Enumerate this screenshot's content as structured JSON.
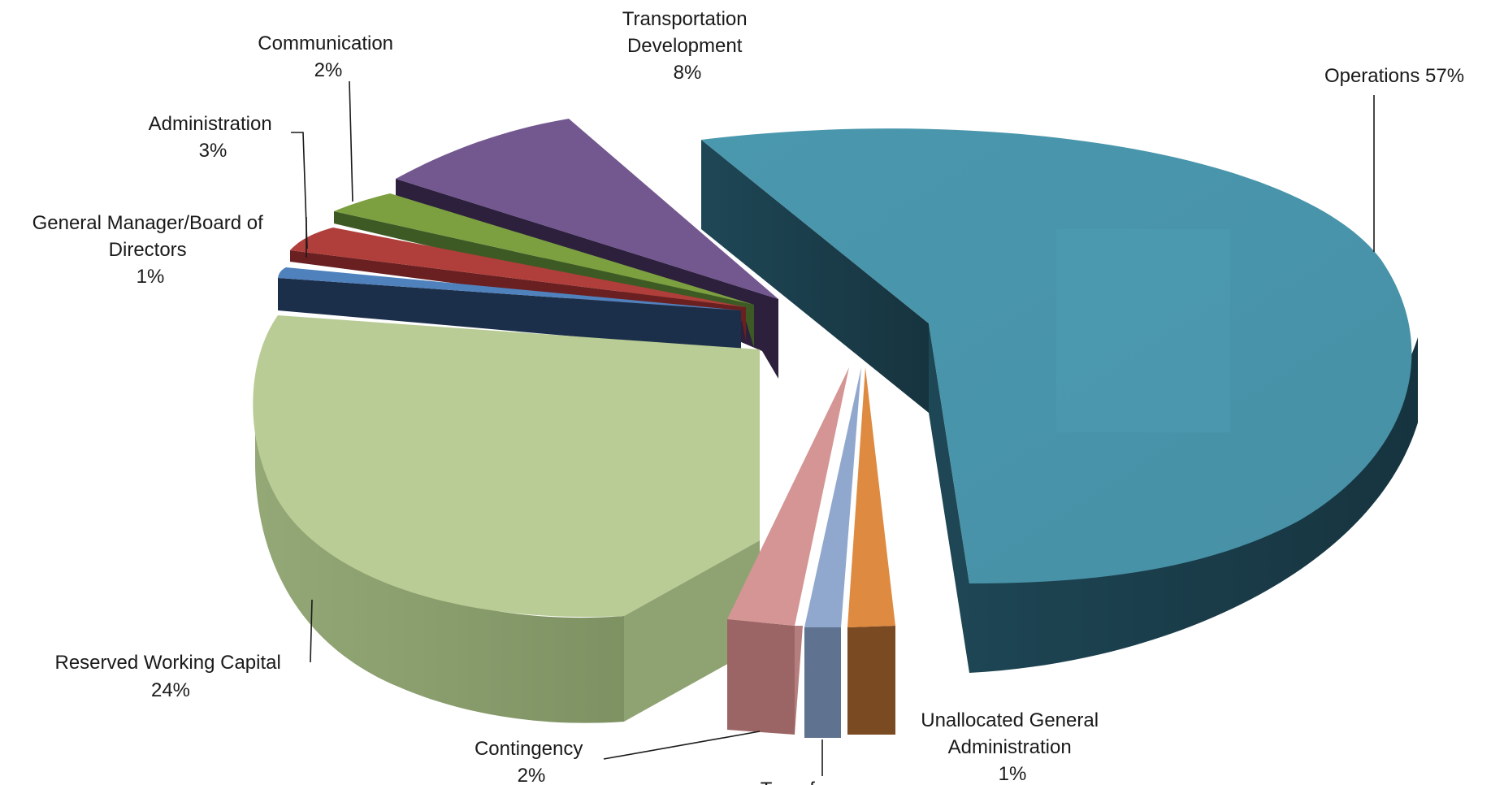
{
  "chart_data": {
    "type": "pie",
    "title": "",
    "series": [
      {
        "key": "ops",
        "label_lines": [
          "Operations  57%"
        ],
        "value": 57,
        "color": "#4A93A9"
      },
      {
        "key": "una",
        "label_lines": [
          "Unallocated General",
          "Administration",
          "1%"
        ],
        "value": 1,
        "color": "#DE8A40"
      },
      {
        "key": "trn",
        "label_lines": [
          "Transfers"
        ],
        "value": 1,
        "color": "#91A8CE"
      },
      {
        "key": "con",
        "label_lines": [
          "Contingency",
          "2%"
        ],
        "value": 2,
        "color": "#D49594"
      },
      {
        "key": "rwc",
        "label_lines": [
          "Reserved Working Capital",
          "24%"
        ],
        "value": 24,
        "color": "#B9CB93"
      },
      {
        "key": "gmb",
        "label_lines": [
          "General Manager/Board of",
          "Directors",
          "1%"
        ],
        "value": 1,
        "color": "#4F81BD"
      },
      {
        "key": "adm",
        "label_lines": [
          "Administration",
          "3%"
        ],
        "value": 3,
        "color": "#B5423F"
      },
      {
        "key": "com",
        "label_lines": [
          "Communication",
          "2%"
        ],
        "value": 2,
        "color": "#7FA544"
      },
      {
        "key": "tdv",
        "label_lines": [
          "Transportation",
          "Development",
          "8%"
        ],
        "value": 8,
        "color": "#7A5A9C"
      }
    ],
    "style": "3d-exploded",
    "legend": "none (callout labels)"
  }
}
